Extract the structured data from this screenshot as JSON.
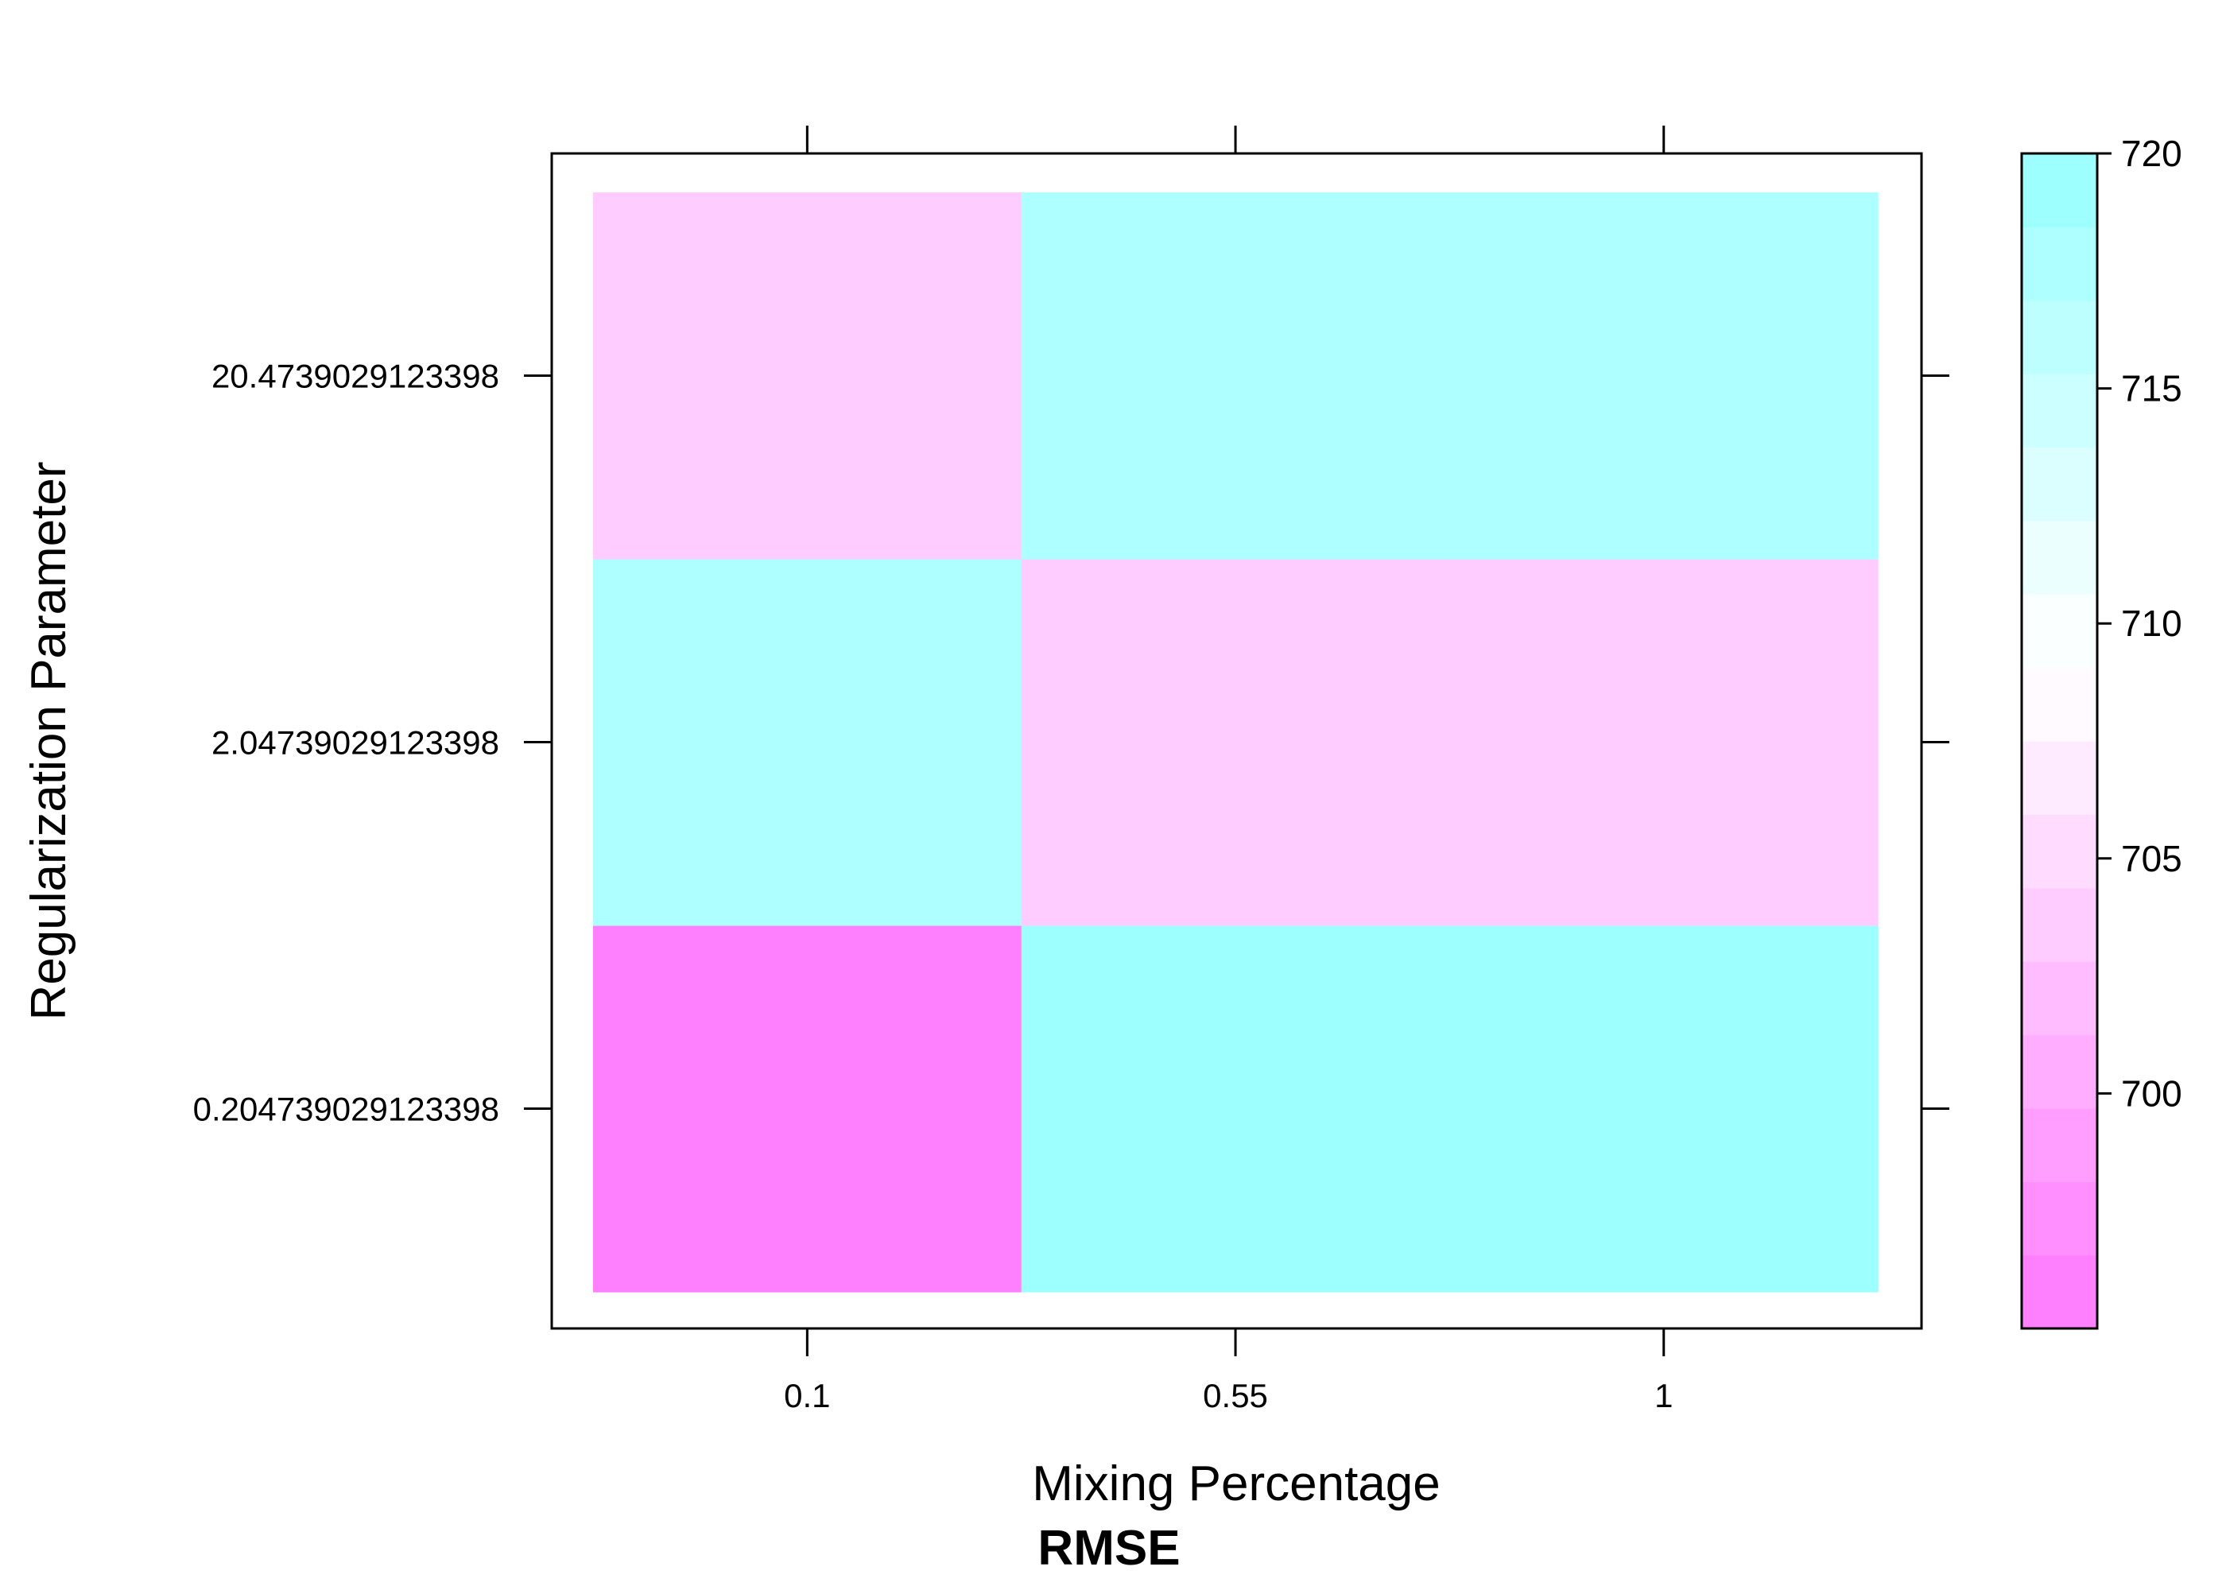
{
  "chart_data": {
    "type": "heatmap",
    "title": "",
    "xlabel": "Mixing Percentage",
    "ylabel": "Regularization Parameter",
    "caption": "RMSE",
    "x_categories": [
      "0.1",
      "0.55",
      "1"
    ],
    "y_categories": [
      "0.204739029123398",
      "2.04739029123398",
      "20.4739029123398"
    ],
    "cells": [
      {
        "x": "0.1",
        "y": "0.204739029123398",
        "value": 695.5
      },
      {
        "x": "0.55",
        "y": "0.204739029123398",
        "value": 719.5
      },
      {
        "x": "1",
        "y": "0.204739029123398",
        "value": 718.5
      },
      {
        "x": "0.1",
        "y": "2.04739029123398",
        "value": 718.0
      },
      {
        "x": "0.55",
        "y": "2.04739029123398",
        "value": 703.5
      },
      {
        "x": "1",
        "y": "2.04739029123398",
        "value": 703.5
      },
      {
        "x": "0.1",
        "y": "20.4739029123398",
        "value": 703.5
      },
      {
        "x": "0.55",
        "y": "20.4739029123398",
        "value": 717.0
      },
      {
        "x": "1",
        "y": "20.4739029123398",
        "value": 717.0
      }
    ],
    "colorkey": {
      "min": 695,
      "max": 720,
      "breaks": [
        695,
        696.5625,
        698.125,
        699.6875,
        701.25,
        702.8125,
        704.375,
        705.9375,
        707.5,
        709.0625,
        710.625,
        712.1875,
        713.75,
        715.3125,
        716.875,
        718.4375,
        720
      ],
      "colors": [
        "#FF80FF",
        "#FF8FFF",
        "#FF9EFF",
        "#FFAEFF",
        "#FFBDFF",
        "#FFCCFF",
        "#FFDBFF",
        "#FFEBFF",
        "#FFFAFF",
        "#FAFFFF",
        "#EBFFFF",
        "#DBFFFF",
        "#CCFFFF",
        "#BDFFFF",
        "#AEFFFF",
        "#9EFFFF"
      ],
      "tick_values": [
        700,
        705,
        710,
        715,
        720
      ],
      "tick_labels": [
        "700",
        "705",
        "710",
        "715",
        "720"
      ],
      "position": "right"
    }
  }
}
